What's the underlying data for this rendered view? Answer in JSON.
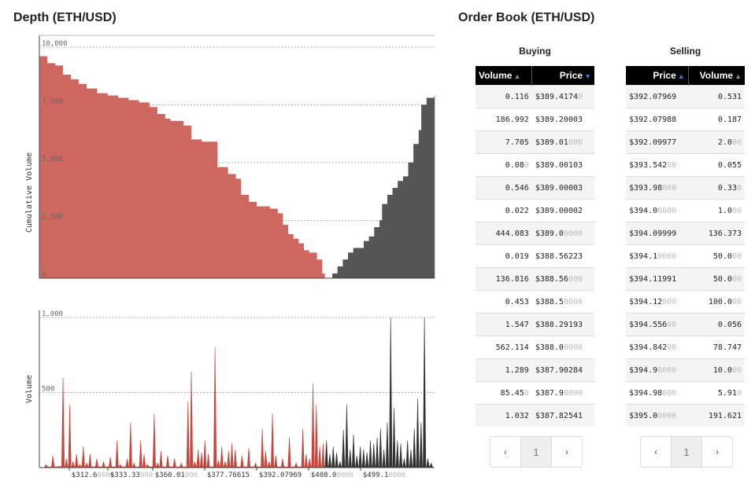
{
  "depth": {
    "title": "Depth (ETH/USD)",
    "ylabel": "Cumulative Volume",
    "yticks": [
      "10,000",
      "7,500",
      "5,000",
      "2,500",
      "0"
    ]
  },
  "volume": {
    "ylabel": "Volume",
    "yticks": [
      "1,000",
      "500"
    ],
    "xticks": [
      {
        "main": "$312.6",
        "dim": "0000"
      },
      {
        "main": "$333.33",
        "dim": "000"
      },
      {
        "main": "$360.01",
        "dim": "000"
      },
      {
        "main": "$377.76615",
        "dim": ""
      },
      {
        "main": "$392.07969",
        "dim": ""
      },
      {
        "main": "$408.0",
        "dim": "0000"
      },
      {
        "main": "$499.1",
        "dim": "0000"
      }
    ]
  },
  "chart_data": [
    {
      "type": "area",
      "title": "Depth (ETH/USD)",
      "ylabel": "Cumulative Volume",
      "ylim": [
        0,
        10000
      ],
      "series": [
        {
          "name": "Buying",
          "color": "#cd6760",
          "points": [
            [
              0,
              9600
            ],
            [
              3,
              9300
            ],
            [
              6,
              9200
            ],
            [
              9,
              8800
            ],
            [
              12,
              8600
            ],
            [
              15,
              8400
            ],
            [
              18,
              8200
            ],
            [
              22,
              8000
            ],
            [
              26,
              7900
            ],
            [
              30,
              7800
            ],
            [
              34,
              7700
            ],
            [
              38,
              7600
            ],
            [
              42,
              7400
            ],
            [
              45,
              7100
            ],
            [
              48,
              6900
            ],
            [
              50,
              6800
            ],
            [
              55,
              6600
            ],
            [
              58,
              6000
            ],
            [
              62,
              5900
            ],
            [
              66,
              5900
            ],
            [
              68,
              4800
            ],
            [
              72,
              4500
            ],
            [
              75,
              4300
            ],
            [
              77,
              3600
            ],
            [
              80,
              3300
            ],
            [
              83,
              3100
            ],
            [
              88,
              3000
            ],
            [
              91,
              2800
            ],
            [
              93,
              2300
            ],
            [
              95,
              1900
            ],
            [
              97,
              1700
            ],
            [
              99,
              1500
            ],
            [
              101,
              1200
            ],
            [
              103,
              1100
            ],
            [
              106,
              800
            ],
            [
              108,
              200
            ],
            [
              109,
              0
            ]
          ]
        },
        {
          "name": "Selling",
          "color": "#555555",
          "points": [
            [
              111,
              0
            ],
            [
              112,
              200
            ],
            [
              114,
              500
            ],
            [
              116,
              800
            ],
            [
              118,
              1100
            ],
            [
              120,
              1300
            ],
            [
              122,
              1300
            ],
            [
              124,
              1600
            ],
            [
              126,
              1800
            ],
            [
              128,
              2200
            ],
            [
              130,
              2500
            ],
            [
              131,
              3200
            ],
            [
              133,
              3600
            ],
            [
              135,
              3900
            ],
            [
              137,
              4200
            ],
            [
              139,
              4400
            ],
            [
              141,
              5000
            ],
            [
              143,
              5800
            ],
            [
              145,
              6400
            ],
            [
              146,
              7500
            ],
            [
              148,
              7800
            ],
            [
              151,
              7900
            ]
          ]
        }
      ]
    },
    {
      "type": "area",
      "ylabel": "Volume",
      "ylim": [
        0,
        1000
      ],
      "x_tick_labels": [
        "$312.60000",
        "$333.33000",
        "$360.01000",
        "$377.76615",
        "$392.07969",
        "$408.00000",
        "$499.10000"
      ],
      "series": [
        {
          "name": "Buying",
          "color": "#c9453c",
          "points": [
            [
              2,
              20
            ],
            [
              4,
              80
            ],
            [
              6,
              10
            ],
            [
              7,
              600
            ],
            [
              8,
              60
            ],
            [
              9,
              420
            ],
            [
              10,
              40
            ],
            [
              11,
              90
            ],
            [
              12,
              20
            ],
            [
              13,
              140
            ],
            [
              14,
              30
            ],
            [
              15,
              90
            ],
            [
              17,
              60
            ],
            [
              19,
              40
            ],
            [
              21,
              70
            ],
            [
              23,
              180
            ],
            [
              24,
              20
            ],
            [
              26,
              60
            ],
            [
              27,
              300
            ],
            [
              28,
              30
            ],
            [
              30,
              180
            ],
            [
              31,
              90
            ],
            [
              32,
              20
            ],
            [
              34,
              360
            ],
            [
              35,
              30
            ],
            [
              36,
              110
            ],
            [
              38,
              80
            ],
            [
              40,
              60
            ],
            [
              42,
              30
            ],
            [
              44,
              440
            ],
            [
              45,
              640
            ],
            [
              46,
              40
            ],
            [
              47,
              120
            ],
            [
              48,
              100
            ],
            [
              49,
              180
            ],
            [
              50,
              90
            ],
            [
              52,
              800
            ],
            [
              53,
              50
            ],
            [
              54,
              140
            ],
            [
              55,
              40
            ],
            [
              56,
              110
            ],
            [
              57,
              160
            ],
            [
              58,
              120
            ],
            [
              60,
              80
            ],
            [
              62,
              130
            ],
            [
              64,
              30
            ],
            [
              66,
              260
            ],
            [
              67,
              110
            ],
            [
              68,
              40
            ],
            [
              69,
              360
            ],
            [
              70,
              80
            ],
            [
              72,
              60
            ],
            [
              74,
              200
            ],
            [
              76,
              30
            ],
            [
              78,
              260
            ],
            [
              79,
              90
            ],
            [
              80,
              60
            ],
            [
              81,
              560
            ],
            [
              82,
              420
            ],
            [
              83,
              140
            ],
            [
              84,
              160
            ]
          ]
        },
        {
          "name": "Selling",
          "color": "#333333",
          "points": [
            [
              85,
              180
            ],
            [
              86,
              90
            ],
            [
              87,
              140
            ],
            [
              88,
              100
            ],
            [
              89,
              40
            ],
            [
              90,
              250
            ],
            [
              91,
              420
            ],
            [
              92,
              120
            ],
            [
              93,
              220
            ],
            [
              94,
              80
            ],
            [
              95,
              140
            ],
            [
              96,
              120
            ],
            [
              97,
              100
            ],
            [
              98,
              180
            ],
            [
              99,
              160
            ],
            [
              100,
              200
            ],
            [
              101,
              260
            ],
            [
              102,
              120
            ],
            [
              103,
              300
            ],
            [
              104,
              1000
            ],
            [
              105,
              400
            ],
            [
              106,
              180
            ],
            [
              107,
              160
            ],
            [
              108,
              60
            ],
            [
              109,
              180
            ],
            [
              110,
              120
            ],
            [
              111,
              260
            ],
            [
              112,
              460
            ],
            [
              113,
              300
            ],
            [
              114,
              1000
            ],
            [
              115,
              60
            ],
            [
              116,
              30
            ]
          ]
        }
      ]
    }
  ],
  "orderbook": {
    "title": "Order Book (ETH/USD)",
    "buying": {
      "title": "Buying",
      "headers": {
        "volume": "Volume",
        "price": "Price"
      },
      "rows": [
        {
          "v": "0.116",
          "vd": "",
          "p": "$389.4174",
          "pd": "0"
        },
        {
          "v": "186.992",
          "vd": "",
          "p": "$389.20003",
          "pd": ""
        },
        {
          "v": "7.705",
          "vd": "",
          "p": "$389.01",
          "pd": "000"
        },
        {
          "v": "0.08",
          "vd": "0",
          "p": "$389.00103",
          "pd": ""
        },
        {
          "v": "0.546",
          "vd": "",
          "p": "$389.00003",
          "pd": ""
        },
        {
          "v": "0.022",
          "vd": "",
          "p": "$389.00002",
          "pd": ""
        },
        {
          "v": "444.083",
          "vd": "",
          "p": "$389.0",
          "pd": "0000"
        },
        {
          "v": "0.019",
          "vd": "",
          "p": "$388.56223",
          "pd": ""
        },
        {
          "v": "136.816",
          "vd": "",
          "p": "$388.56",
          "pd": "000"
        },
        {
          "v": "0.453",
          "vd": "",
          "p": "$388.5",
          "pd": "0000"
        },
        {
          "v": "1.547",
          "vd": "",
          "p": "$388.29193",
          "pd": ""
        },
        {
          "v": "562.114",
          "vd": "",
          "p": "$388.0",
          "pd": "0000"
        },
        {
          "v": "1.289",
          "vd": "",
          "p": "$387.90284",
          "pd": ""
        },
        {
          "v": "85.45",
          "vd": "0",
          "p": "$387.9",
          "pd": "0000"
        },
        {
          "v": "1.032",
          "vd": "",
          "p": "$387.82541",
          "pd": ""
        }
      ],
      "pager": {
        "prev": "‹",
        "page": "1",
        "next": "›"
      }
    },
    "selling": {
      "title": "Selling",
      "headers": {
        "price": "Price",
        "volume": "Volume"
      },
      "rows": [
        {
          "p": "$392.07969",
          "pd": "",
          "v": "0.531",
          "vd": ""
        },
        {
          "p": "$392.07988",
          "pd": "",
          "v": "0.187",
          "vd": ""
        },
        {
          "p": "$392.09977",
          "pd": "",
          "v": "2.0",
          "vd": "00"
        },
        {
          "p": "$393.542",
          "pd": "00",
          "v": "0.055",
          "vd": ""
        },
        {
          "p": "$393.98",
          "pd": "000",
          "v": "0.33",
          "vd": "0"
        },
        {
          "p": "$394.0",
          "pd": "0000",
          "v": "1.0",
          "vd": "00"
        },
        {
          "p": "$394.09999",
          "pd": "",
          "v": "136.373",
          "vd": ""
        },
        {
          "p": "$394.1",
          "pd": "0000",
          "v": "50.0",
          "vd": "00"
        },
        {
          "p": "$394.11991",
          "pd": "",
          "v": "50.0",
          "vd": "00"
        },
        {
          "p": "$394.12",
          "pd": "000",
          "v": "100.0",
          "vd": "00"
        },
        {
          "p": "$394.556",
          "pd": "00",
          "v": "0.056",
          "vd": ""
        },
        {
          "p": "$394.842",
          "pd": "00",
          "v": "78.747",
          "vd": ""
        },
        {
          "p": "$394.9",
          "pd": "0000",
          "v": "10.0",
          "vd": "00"
        },
        {
          "p": "$394.98",
          "pd": "000",
          "v": "5.91",
          "vd": "0"
        },
        {
          "p": "$395.0",
          "pd": "0000",
          "v": "191.621",
          "vd": ""
        }
      ],
      "pager": {
        "prev": "‹",
        "page": "1",
        "next": "›"
      }
    }
  }
}
